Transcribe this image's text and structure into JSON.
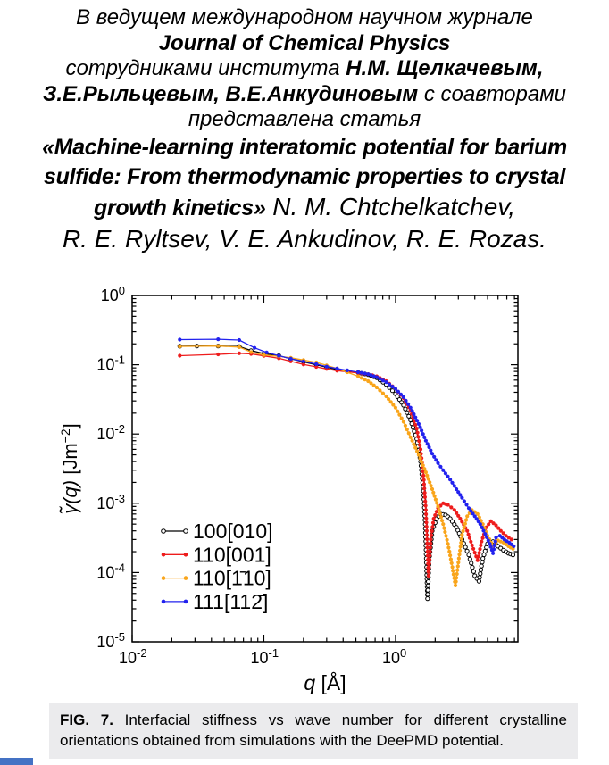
{
  "header": {
    "line1": "В ведущем международном научном журнале",
    "line2": "Journal of Chemical Physics",
    "line3_prefix": "сотрудниками института ",
    "line3_bold": "Н.М. Щелкачевым,",
    "line4_bold": "З.Е.Рыльцевым, В.Е.Анкудиновым",
    "line4_suffix": " с соавторами",
    "line5": "представлена статья",
    "title_line1": "«Machine-learning interatomic potential for barium",
    "title_line2": "sulfide: From thermodynamic properties to crystal",
    "title_line3_bold": "growth kinetics»",
    "title_line3_authors": " N. M. Chtchelkatchev,",
    "authors_line2": "R. E. Ryltsev, V. E. Ankudinov, R. E. Rozas."
  },
  "chart_data": {
    "type": "line",
    "title": "",
    "xlabel": "q [Å]",
    "ylabel": "γ̃(q) [Jm⁻²]",
    "xlabel_parts": {
      "var": "q",
      "unit": " [Å]"
    },
    "ylabel_parts": {
      "func": "γ̃(q)",
      "unit_prefix": " [Jm",
      "unit_sup": "−2",
      "unit_suffix": "]"
    },
    "x_scale": "log",
    "y_scale": "log",
    "xlim": [
      0.01,
      8.5
    ],
    "ylim": [
      1e-05,
      1
    ],
    "x_tick_exponents": [
      -2,
      -1,
      0
    ],
    "y_tick_exponents": [
      0,
      -1,
      -2,
      -3,
      -4,
      -5
    ],
    "x_tick_labels": [
      "10⁻²",
      "10⁻¹",
      "10⁰"
    ],
    "y_tick_labels": [
      "10⁰",
      "10⁻¹",
      "10⁻²",
      "10⁻³",
      "10⁻⁴",
      "10⁻⁵"
    ],
    "grid": false,
    "legend_position": "lower-left",
    "series": [
      {
        "name": "100[010]",
        "color": "#000000",
        "marker": "open-circle",
        "points": [
          [
            0.023,
            0.185
          ],
          [
            0.031,
            0.186
          ],
          [
            0.045,
            0.186
          ],
          [
            0.065,
            0.183
          ],
          [
            0.08,
            0.16
          ],
          [
            0.1,
            0.145
          ],
          [
            0.13,
            0.135
          ],
          [
            0.16,
            0.122
          ],
          [
            0.2,
            0.11
          ],
          [
            0.25,
            0.1
          ],
          [
            0.3,
            0.092
          ],
          [
            0.36,
            0.085
          ],
          [
            0.43,
            0.08
          ],
          [
            0.52,
            0.077
          ],
          [
            0.62,
            0.072
          ],
          [
            0.72,
            0.065
          ],
          [
            0.85,
            0.052
          ],
          [
            1.0,
            0.038
          ],
          [
            1.15,
            0.026
          ],
          [
            1.3,
            0.016
          ],
          [
            1.45,
            0.0085
          ],
          [
            1.55,
            0.004
          ],
          [
            1.63,
            0.0015
          ],
          [
            1.68,
            0.0005
          ],
          [
            1.72,
            0.00012
          ],
          [
            1.75,
            4.2e-05
          ],
          [
            1.8,
            0.00015
          ],
          [
            1.9,
            0.0004
          ],
          [
            2.05,
            0.0006
          ],
          [
            2.2,
            0.0007
          ],
          [
            2.4,
            0.00068
          ],
          [
            2.6,
            0.0006
          ],
          [
            2.9,
            0.00045
          ],
          [
            3.2,
            0.0003
          ],
          [
            3.6,
            0.00018
          ],
          [
            4.0,
            9e-05
          ],
          [
            4.3,
            7.5e-05
          ],
          [
            4.6,
            0.00016
          ],
          [
            5.0,
            0.00026
          ],
          [
            5.5,
            0.00028
          ],
          [
            6.0,
            0.00024
          ],
          [
            6.6,
            0.00021
          ],
          [
            7.2,
            0.00019
          ],
          [
            7.8,
            0.00018
          ]
        ]
      },
      {
        "name": "110[001]",
        "color": "#ee1c1c",
        "marker": "circle",
        "points": [
          [
            0.023,
            0.135
          ],
          [
            0.045,
            0.141
          ],
          [
            0.065,
            0.146
          ],
          [
            0.08,
            0.143
          ],
          [
            0.1,
            0.134
          ],
          [
            0.13,
            0.124
          ],
          [
            0.16,
            0.112
          ],
          [
            0.2,
            0.101
          ],
          [
            0.25,
            0.093
          ],
          [
            0.3,
            0.087
          ],
          [
            0.36,
            0.082
          ],
          [
            0.43,
            0.079
          ],
          [
            0.52,
            0.076
          ],
          [
            0.62,
            0.073
          ],
          [
            0.72,
            0.068
          ],
          [
            0.85,
            0.058
          ],
          [
            1.0,
            0.045
          ],
          [
            1.15,
            0.033
          ],
          [
            1.3,
            0.022
          ],
          [
            1.45,
            0.012
          ],
          [
            1.55,
            0.006
          ],
          [
            1.63,
            0.0025
          ],
          [
            1.7,
            0.0008
          ],
          [
            1.75,
            0.0002
          ],
          [
            1.78,
            9e-05
          ],
          [
            1.85,
            0.0003
          ],
          [
            1.95,
            0.0006
          ],
          [
            2.1,
            0.00085
          ],
          [
            2.3,
            0.001
          ],
          [
            2.5,
            0.00095
          ],
          [
            2.8,
            0.0008
          ],
          [
            3.1,
            0.0006
          ],
          [
            3.5,
            0.0004
          ],
          [
            3.9,
            0.00022
          ],
          [
            4.2,
            0.00015
          ],
          [
            4.5,
            0.00028
          ],
          [
            4.9,
            0.00045
          ],
          [
            5.3,
            0.00055
          ],
          [
            5.8,
            0.00048
          ],
          [
            6.3,
            0.0004
          ],
          [
            6.9,
            0.00034
          ],
          [
            7.6,
            0.0003
          ]
        ]
      },
      {
        "name": "110[1̄10]",
        "color": "#f9a51b",
        "marker": "circle",
        "points": [
          [
            0.023,
            0.184
          ],
          [
            0.045,
            0.186
          ],
          [
            0.065,
            0.18
          ],
          [
            0.08,
            0.152
          ],
          [
            0.1,
            0.138
          ],
          [
            0.13,
            0.132
          ],
          [
            0.16,
            0.126
          ],
          [
            0.2,
            0.117
          ],
          [
            0.25,
            0.108
          ],
          [
            0.3,
            0.098
          ],
          [
            0.36,
            0.088
          ],
          [
            0.43,
            0.078
          ],
          [
            0.52,
            0.068
          ],
          [
            0.62,
            0.058
          ],
          [
            0.72,
            0.047
          ],
          [
            0.85,
            0.035
          ],
          [
            1.0,
            0.024
          ],
          [
            1.15,
            0.015
          ],
          [
            1.3,
            0.009
          ],
          [
            1.5,
            0.005
          ],
          [
            1.7,
            0.0028
          ],
          [
            1.9,
            0.0016
          ],
          [
            2.1,
            0.0009
          ],
          [
            2.3,
            0.0005
          ],
          [
            2.5,
            0.00026
          ],
          [
            2.7,
            0.00012
          ],
          [
            2.85,
            6.5e-05
          ],
          [
            3.0,
            0.00014
          ],
          [
            3.2,
            0.00035
          ],
          [
            3.5,
            0.00065
          ],
          [
            3.8,
            0.0008
          ],
          [
            4.2,
            0.0007
          ],
          [
            4.6,
            0.0005
          ],
          [
            5.0,
            0.00034
          ],
          [
            5.5,
            0.00024
          ],
          [
            6.0,
            0.00029
          ],
          [
            6.6,
            0.00027
          ],
          [
            7.2,
            0.00024
          ],
          [
            7.8,
            0.00022
          ]
        ]
      },
      {
        "name": "111[112̄]",
        "color": "#2222ee",
        "marker": "circle",
        "points": [
          [
            0.023,
            0.23
          ],
          [
            0.045,
            0.233
          ],
          [
            0.065,
            0.227
          ],
          [
            0.085,
            0.175
          ],
          [
            0.105,
            0.15
          ],
          [
            0.13,
            0.135
          ],
          [
            0.16,
            0.122
          ],
          [
            0.2,
            0.112
          ],
          [
            0.25,
            0.102
          ],
          [
            0.3,
            0.094
          ],
          [
            0.36,
            0.088
          ],
          [
            0.43,
            0.083
          ],
          [
            0.52,
            0.078
          ],
          [
            0.62,
            0.073
          ],
          [
            0.72,
            0.066
          ],
          [
            0.85,
            0.056
          ],
          [
            1.0,
            0.045
          ],
          [
            1.15,
            0.034
          ],
          [
            1.3,
            0.024
          ],
          [
            1.5,
            0.014
          ],
          [
            1.7,
            0.008
          ],
          [
            1.9,
            0.0052
          ],
          [
            2.1,
            0.0038
          ],
          [
            2.3,
            0.003
          ],
          [
            2.6,
            0.0022
          ],
          [
            2.9,
            0.0016
          ],
          [
            3.2,
            0.0012
          ],
          [
            3.6,
            0.00085
          ],
          [
            4.0,
            0.00065
          ],
          [
            4.4,
            0.0005
          ],
          [
            4.8,
            0.00036
          ],
          [
            5.2,
            0.00026
          ],
          [
            5.5,
            0.00019
          ],
          [
            5.8,
            0.00032
          ],
          [
            6.2,
            0.00034
          ],
          [
            6.7,
            0.0003
          ],
          [
            7.3,
            0.00027
          ],
          [
            7.9,
            0.00024
          ]
        ]
      }
    ]
  },
  "caption": {
    "label": "FIG. 7.",
    "text": "Interfacial stiffness vs wave number for different crystalline orientations obtained from simulations with the DeePMD potential.",
    "background_color": "#ebebed"
  },
  "footer_bar": {
    "color": "#4472c4"
  }
}
